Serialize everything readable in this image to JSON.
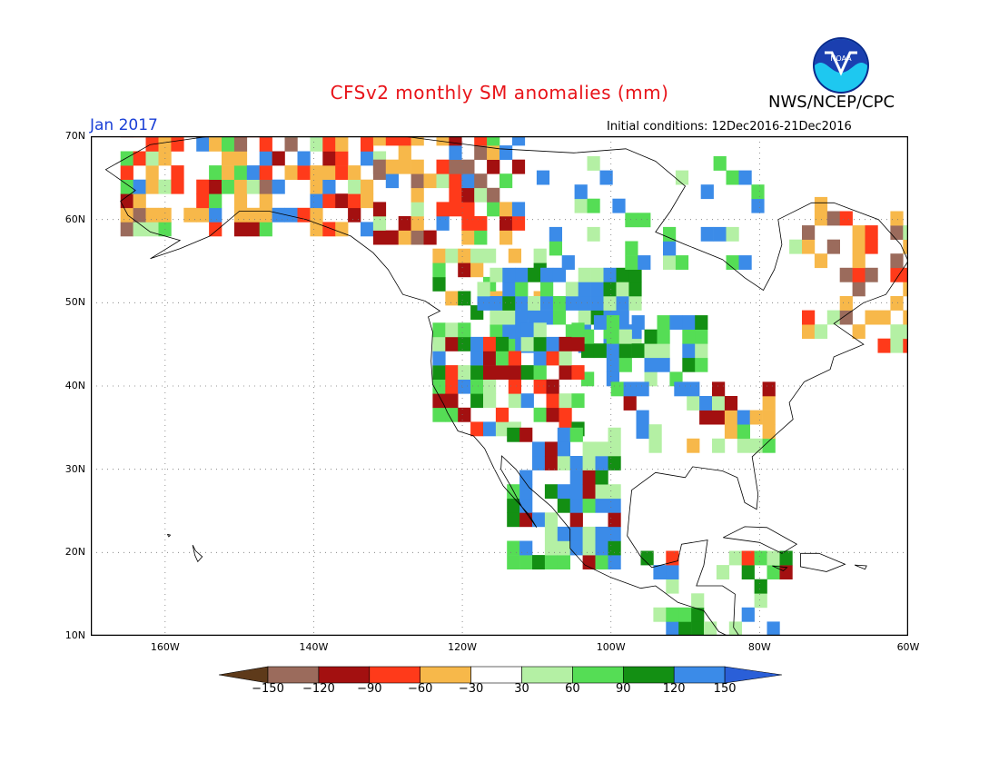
{
  "header": {
    "title": "CFSv2 monthly SM anomalies (mm)",
    "agency": "NWS/NCEP/CPC",
    "month": "Jan 2017",
    "initial_conditions": "Initial conditions: 12Dec2016-21Dec2016",
    "logo_text": "NOAA"
  },
  "map": {
    "lat_labels": [
      "70N",
      "60N",
      "50N",
      "40N",
      "30N",
      "20N",
      "10N"
    ],
    "lon_labels": [
      "160W",
      "140W",
      "120W",
      "100W",
      "80W",
      "60W"
    ],
    "lon_range": [
      -170,
      -60
    ],
    "lat_range": [
      10,
      70
    ]
  },
  "colorbar": {
    "labels": [
      "-150",
      "-120",
      "-90",
      "-60",
      "-30",
      "30",
      "60",
      "90",
      "120",
      "150"
    ],
    "colors": [
      "#5e3a1a",
      "#9b6b5c",
      "#a31010",
      "#ff3a1a",
      "#f7b84a",
      "#ffffff",
      "#b4f0a4",
      "#55dd55",
      "#138f13",
      "#3b8be8",
      "#2a5fd8"
    ]
  }
}
